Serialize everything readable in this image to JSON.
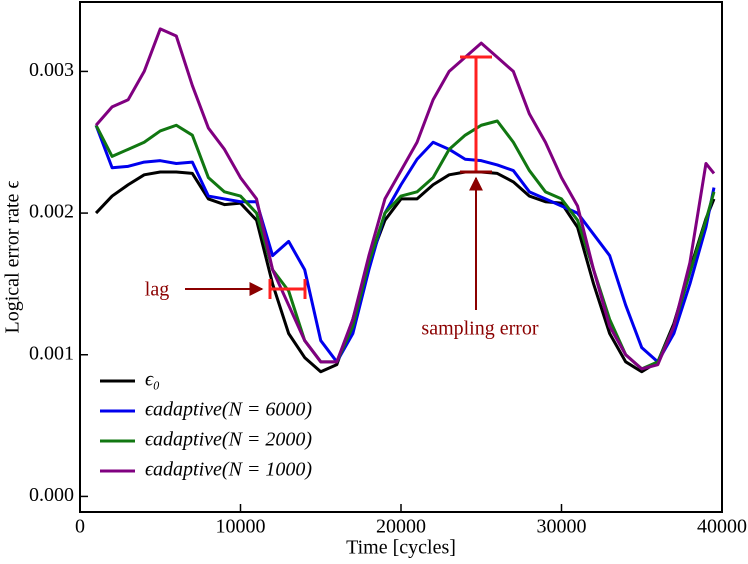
{
  "chart_data": {
    "type": "line",
    "xlabel": "Time [cycles]",
    "ylabel": "Logical error rate ϵ",
    "x": [
      1000,
      2000,
      3000,
      4000,
      5000,
      6000,
      7000,
      8000,
      9000,
      10000,
      11000,
      12000,
      13000,
      14000,
      15000,
      16000,
      17000,
      18000,
      19000,
      20000,
      21000,
      22000,
      23000,
      24000,
      25000,
      26000,
      27000,
      28000,
      29000,
      30000,
      31000,
      32000,
      33000,
      34000,
      35000,
      36000,
      37000,
      38000,
      39000,
      39500
    ],
    "series": [
      {
        "name": "ϵ₀",
        "color": "#000000",
        "values": [
          0.002,
          0.00212,
          0.0022,
          0.00227,
          0.00229,
          0.00229,
          0.00228,
          0.0021,
          0.00206,
          0.00207,
          0.00195,
          0.0015,
          0.00115,
          0.00098,
          0.00088,
          0.00093,
          0.00125,
          0.00165,
          0.00195,
          0.0021,
          0.0021,
          0.0022,
          0.00227,
          0.00229,
          0.00229,
          0.00228,
          0.00222,
          0.00212,
          0.00208,
          0.00207,
          0.0019,
          0.0015,
          0.00115,
          0.00095,
          0.00088,
          0.00095,
          0.00122,
          0.0016,
          0.00196,
          0.0021
        ]
      },
      {
        "name": "ϵadaptive(N = 6000)",
        "color": "#0000ee",
        "values": [
          0.00262,
          0.00232,
          0.00233,
          0.00236,
          0.00237,
          0.00235,
          0.00236,
          0.00212,
          0.0021,
          0.00208,
          0.00208,
          0.0017,
          0.0018,
          0.0016,
          0.0011,
          0.00095,
          0.00115,
          0.0016,
          0.002,
          0.0022,
          0.00238,
          0.0025,
          0.00245,
          0.00238,
          0.00237,
          0.00234,
          0.0023,
          0.00215,
          0.0021,
          0.00205,
          0.002,
          0.00185,
          0.0017,
          0.00135,
          0.00105,
          0.00095,
          0.00115,
          0.0015,
          0.0019,
          0.00218
        ]
      },
      {
        "name": "ϵadaptive(N = 2000)",
        "color": "#117711",
        "values": [
          0.00262,
          0.0024,
          0.00245,
          0.0025,
          0.00258,
          0.00262,
          0.00255,
          0.00225,
          0.00215,
          0.00212,
          0.002,
          0.0016,
          0.00145,
          0.0011,
          0.00095,
          0.00095,
          0.0012,
          0.00165,
          0.002,
          0.00212,
          0.00215,
          0.00225,
          0.00245,
          0.00255,
          0.00262,
          0.00265,
          0.0025,
          0.0023,
          0.00215,
          0.0021,
          0.00195,
          0.0016,
          0.00125,
          0.001,
          0.0009,
          0.00095,
          0.0012,
          0.00158,
          0.00195,
          0.00215
        ]
      },
      {
        "name": "ϵadaptive(N = 1000)",
        "color": "#800080",
        "values": [
          0.00262,
          0.00275,
          0.0028,
          0.003,
          0.0033,
          0.00325,
          0.0029,
          0.0026,
          0.00245,
          0.00225,
          0.0021,
          0.0016,
          0.00135,
          0.0011,
          0.00095,
          0.00095,
          0.00125,
          0.0017,
          0.0021,
          0.0023,
          0.0025,
          0.0028,
          0.003,
          0.0031,
          0.0032,
          0.0031,
          0.003,
          0.0027,
          0.0025,
          0.00225,
          0.00205,
          0.0016,
          0.0012,
          0.001,
          0.0009,
          0.00093,
          0.0012,
          0.00165,
          0.00235,
          0.00228
        ]
      }
    ],
    "xlim": [
      0,
      40000
    ],
    "xticks": [
      0,
      10000,
      20000,
      30000,
      40000
    ],
    "ylim": [
      -0.00011,
      0.00349
    ],
    "yticks": [
      {
        "value": 0,
        "label": "0.000"
      },
      0.001,
      0.002,
      0.003
    ],
    "annotations": [
      "lag",
      "sampling error"
    ],
    "legend": "lower left"
  }
}
